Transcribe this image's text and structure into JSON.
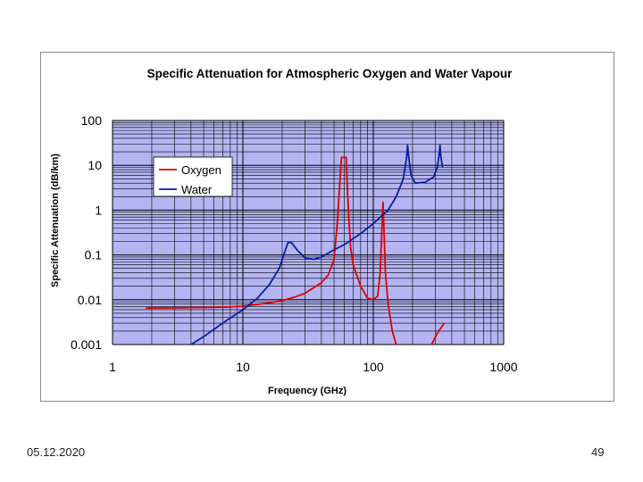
{
  "footer": {
    "date": "05.12.2020",
    "page": "49"
  },
  "colors": {
    "plot_bg": "#b4b4f2",
    "grid": "#000000",
    "oxygen": "#e00000",
    "water": "#0a1ea0"
  },
  "chart_data": {
    "type": "line",
    "title": "Specific Attenuation for Atmospheric Oxygen and Water Vapour",
    "xlabel": "Frequency (GHz)",
    "ylabel": "Specific Attenuation (dB/km)",
    "xscale": "log",
    "yscale": "log",
    "xlim": [
      1,
      1000
    ],
    "ylim": [
      0.001,
      100
    ],
    "xticks": [
      {
        "value": 1,
        "label": "1"
      },
      {
        "value": 10,
        "label": "10"
      },
      {
        "value": 100,
        "label": "100"
      },
      {
        "value": 1000,
        "label": "1000"
      }
    ],
    "yticks": [
      {
        "value": 0.001,
        "label": "0.001"
      },
      {
        "value": 0.01,
        "label": "0.01"
      },
      {
        "value": 0.1,
        "label": "0.1"
      },
      {
        "value": 1,
        "label": "1"
      },
      {
        "value": 10,
        "label": "10"
      },
      {
        "value": 100,
        "label": "100"
      }
    ],
    "grid": true,
    "legend_position": "upper-left",
    "series": [
      {
        "name": "Oxygen",
        "color": "#e00000",
        "segments": [
          [
            [
              1.8,
              0.0065
            ],
            [
              3,
              0.0066
            ],
            [
              5,
              0.0067
            ],
            [
              8,
              0.0069
            ],
            [
              10,
              0.0072
            ],
            [
              15,
              0.0083
            ],
            [
              20,
              0.0096
            ],
            [
              25,
              0.0115
            ],
            [
              30,
              0.014
            ],
            [
              40,
              0.024
            ],
            [
              45,
              0.035
            ],
            [
              50,
              0.08
            ],
            [
              53,
              0.5
            ],
            [
              55,
              3
            ],
            [
              57,
              15
            ],
            [
              62,
              15
            ],
            [
              63,
              4
            ],
            [
              65,
              0.6
            ],
            [
              67,
              0.15
            ],
            [
              70,
              0.06
            ],
            [
              80,
              0.02
            ],
            [
              90,
              0.011
            ],
            [
              100,
              0.01
            ],
            [
              108,
              0.012
            ],
            [
              113,
              0.04
            ],
            [
              116,
              0.3
            ],
            [
              118.75,
              1.5
            ],
            [
              121,
              0.3
            ],
            [
              124,
              0.04
            ],
            [
              130,
              0.008
            ],
            [
              140,
              0.002
            ],
            [
              150,
              0.001
            ]
          ],
          [
            [
              280,
              0.001
            ],
            [
              310,
              0.0018
            ],
            [
              350,
              0.003
            ]
          ]
        ]
      },
      {
        "name": "Water",
        "color": "#0a1ea0",
        "segments": [
          [
            [
              4,
              0.001
            ],
            [
              5,
              0.0015
            ],
            [
              7,
              0.003
            ],
            [
              10,
              0.006
            ],
            [
              13,
              0.011
            ],
            [
              16,
              0.022
            ],
            [
              19,
              0.05
            ],
            [
              21,
              0.12
            ],
            [
              22.2,
              0.19
            ],
            [
              23.5,
              0.19
            ],
            [
              26,
              0.13
            ],
            [
              30,
              0.085
            ],
            [
              35,
              0.08
            ],
            [
              40,
              0.09
            ],
            [
              50,
              0.13
            ],
            [
              60,
              0.17
            ],
            [
              80,
              0.3
            ],
            [
              100,
              0.5
            ],
            [
              130,
              1
            ],
            [
              150,
              2
            ],
            [
              170,
              5
            ],
            [
              180,
              15
            ],
            [
              183.3,
              28
            ],
            [
              187,
              15
            ],
            [
              195,
              6
            ],
            [
              210,
              4
            ],
            [
              250,
              4.2
            ],
            [
              290,
              5.5
            ],
            [
              310,
              9
            ],
            [
              320,
              18
            ],
            [
              325,
              28
            ],
            [
              330,
              15
            ],
            [
              340,
              9
            ]
          ]
        ]
      }
    ]
  }
}
